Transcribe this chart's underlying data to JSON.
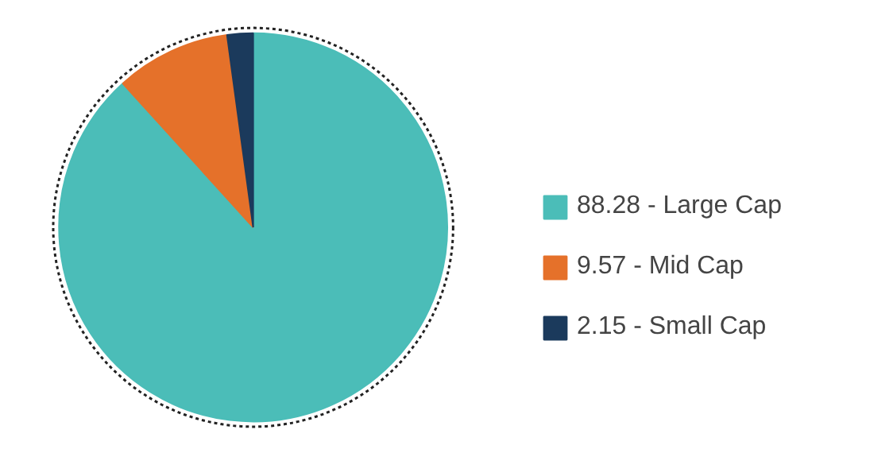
{
  "chart_data": {
    "type": "pie",
    "categories": [
      "88.28 - Large Cap",
      "9.57 - Mid Cap",
      "2.15 - Small Cap"
    ],
    "values": [
      88.28,
      9.57,
      2.15
    ],
    "colors": [
      "#4bbdb8",
      "#e5712a",
      "#1b3a5c"
    ],
    "legend": "right"
  }
}
